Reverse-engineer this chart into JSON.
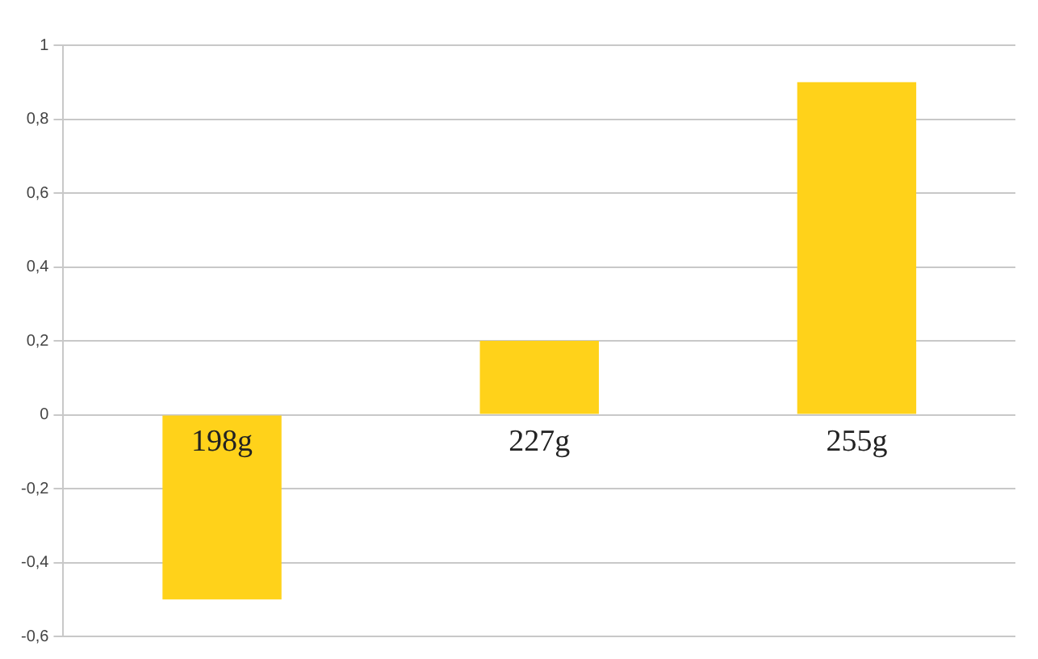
{
  "chart_data": {
    "type": "bar",
    "categories": [
      "198g",
      "227g",
      "255g"
    ],
    "values": [
      -0.5,
      0.2,
      0.9
    ],
    "color": "#ffd21a",
    "ylim": [
      -0.6,
      1
    ],
    "yticks": [
      {
        "value": -0.6,
        "label": "-0,6"
      },
      {
        "value": -0.4,
        "label": "-0,4"
      },
      {
        "value": -0.2,
        "label": "-0,2"
      },
      0,
      {
        "value": 0.2,
        "label": "0,2"
      },
      {
        "value": 0.4,
        "label": "0,4"
      },
      {
        "value": 0.6,
        "label": "0,6"
      },
      {
        "value": 0.8,
        "label": "0,8"
      },
      1
    ],
    "grid": "y",
    "legend": false
  }
}
